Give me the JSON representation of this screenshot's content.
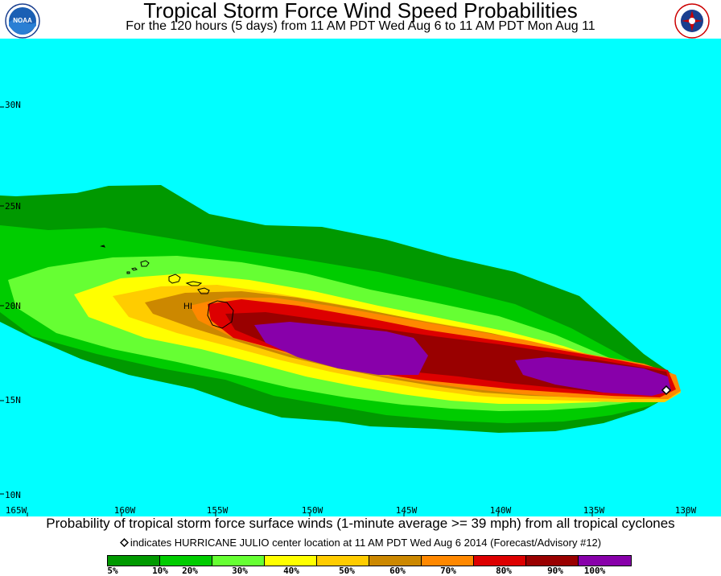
{
  "header": {
    "title": "Tropical Storm Force Wind Speed Probabilities",
    "subtitle": "For the 120 hours (5 days) from 11 AM PDT Wed Aug 6 to 11 AM PDT Mon Aug 11",
    "left_logo_text": "NOAA",
    "right_logo_text": "NATIONAL WEATHER SERVICE"
  },
  "map": {
    "ocean_color": "#00ffff",
    "lat_labels": [
      "30N",
      "25N",
      "20N",
      "15N",
      "10N"
    ],
    "lon_labels": [
      "165W",
      "160W",
      "155W",
      "150W",
      "145W",
      "140W",
      "135W",
      "130W"
    ],
    "land_label": "HI"
  },
  "footer": {
    "description": "Probability of tropical storm force surface winds (1-minute average >= 39 mph) from all tropical cyclones",
    "center_note": "indicates HURRICANE JULIO center location at 11 AM PDT Wed Aug 6 2014 (Forecast/Advisory #12)"
  },
  "legend": {
    "colors": [
      "#009900",
      "#00cc00",
      "#66ff33",
      "#ffff00",
      "#ffcc00",
      "#cc8800",
      "#ff8800",
      "#dd0000",
      "#990000",
      "#8800aa"
    ],
    "labels": [
      "5%",
      "10%",
      "20%",
      "30%",
      "40%",
      "50%",
      "60%",
      "70%",
      "80%",
      "90%",
      "100%"
    ]
  }
}
